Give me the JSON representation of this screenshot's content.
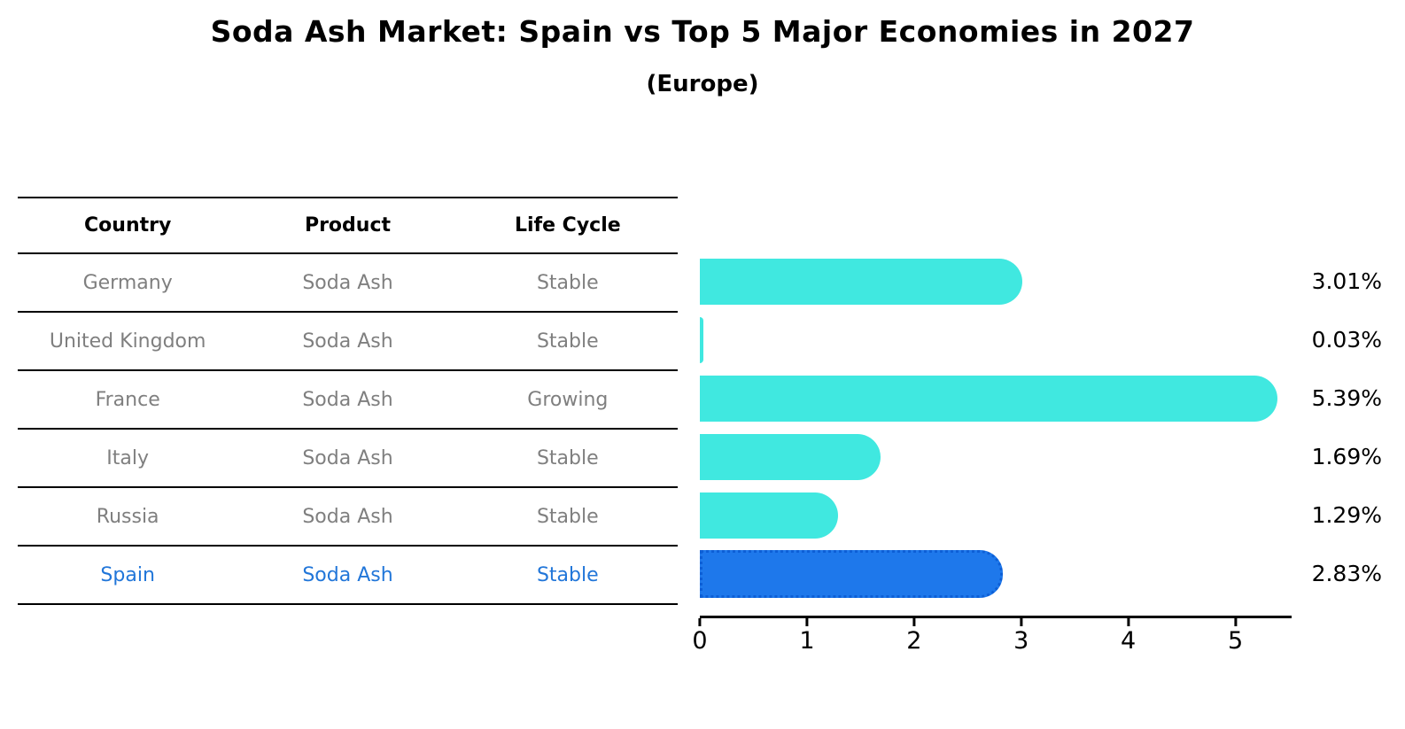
{
  "title": "Soda Ash Market: Spain vs Top 5 Major Economies in 2027",
  "subtitle": "(Europe)",
  "table": {
    "headers": [
      "Country",
      "Product",
      "Life Cycle"
    ],
    "rows": [
      {
        "country": "Germany",
        "product": "Soda Ash",
        "life_cycle": "Stable",
        "highlight": false
      },
      {
        "country": "United Kingdom",
        "product": "Soda Ash",
        "life_cycle": "Stable",
        "highlight": false
      },
      {
        "country": "France",
        "product": "Soda Ash",
        "life_cycle": "Growing",
        "highlight": false
      },
      {
        "country": "Italy",
        "product": "Soda Ash",
        "life_cycle": "Stable",
        "highlight": false
      },
      {
        "country": "Russia",
        "product": "Soda Ash",
        "life_cycle": "Stable",
        "highlight": false
      },
      {
        "country": "Spain",
        "product": "Soda Ash",
        "life_cycle": "Stable",
        "highlight": true
      }
    ]
  },
  "chart_data": {
    "type": "bar",
    "orientation": "horizontal",
    "title": "Soda Ash Market: Spain vs Top 5 Major Economies in 2027",
    "subtitle": "(Europe)",
    "categories": [
      "Germany",
      "United Kingdom",
      "France",
      "Italy",
      "Russia",
      "Spain"
    ],
    "values": [
      3.01,
      0.03,
      5.39,
      1.69,
      1.29,
      2.83
    ],
    "value_labels": [
      "3.01%",
      "0.03%",
      "5.39%",
      "1.69%",
      "1.29%",
      "2.83%"
    ],
    "xlabel": "",
    "ylabel": "",
    "xlim": [
      0,
      5.5
    ],
    "xticks": [
      0,
      1,
      2,
      3,
      4,
      5
    ],
    "grid": false,
    "legend": "none",
    "highlight_index": 5
  },
  "colors": {
    "bar": "#40e8e0",
    "highlight_bar": "#1e78eb",
    "highlight_border": "#0d5fd6",
    "highlight_text": "#2176d9",
    "table_text": "#7f7f7f",
    "heading_text": "#000000",
    "background": "#ffffff"
  }
}
